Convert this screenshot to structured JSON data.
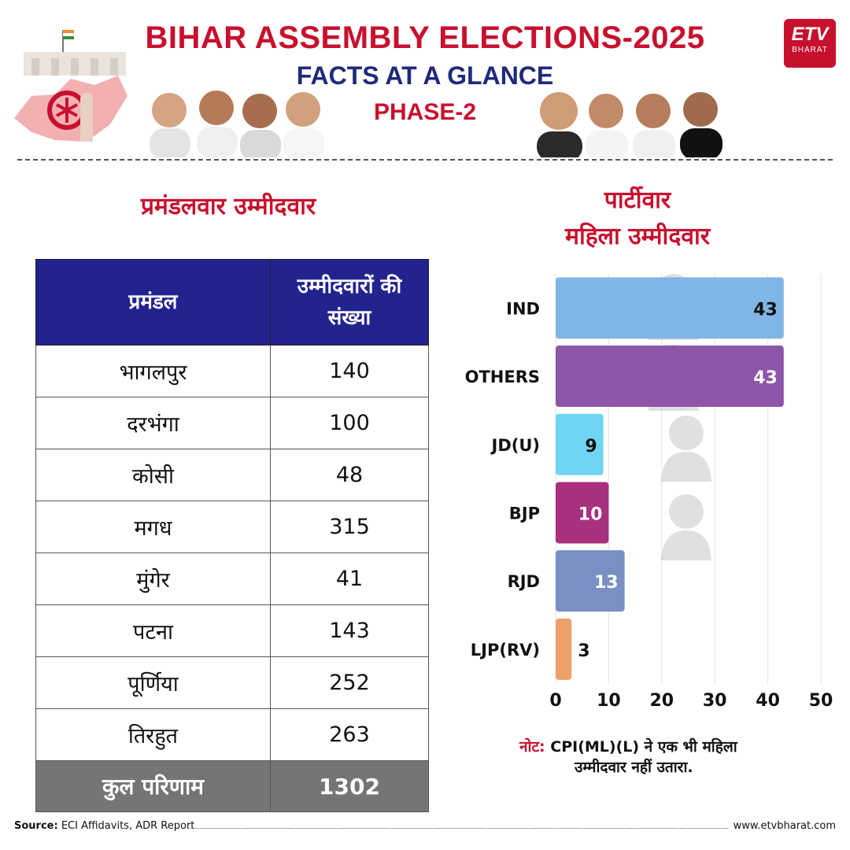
{
  "header": {
    "title": "BIHAR ASSEMBLY ELECTIONS-2025",
    "subtitle": "FACTS AT A GLANCE",
    "phase": "PHASE-2",
    "logo_text": "ETV",
    "logo_sub": "BHARAT"
  },
  "left_section": {
    "title": "प्रमंडलवार उम्मीदवार",
    "columns": [
      "प्रमंडल",
      "उम्मीदवारों की संख्या"
    ],
    "rows": [
      {
        "division": "भागलपुर",
        "count": "140"
      },
      {
        "division": "दरभंगा",
        "count": "100"
      },
      {
        "division": "कोसी",
        "count": "48"
      },
      {
        "division": "मगध",
        "count": "315"
      },
      {
        "division": "मुंगेर",
        "count": "41"
      },
      {
        "division": "पटना",
        "count": "143"
      },
      {
        "division": "पूर्णिया",
        "count": "252"
      },
      {
        "division": "तिरहुत",
        "count": "263"
      }
    ],
    "total_label": "कुल परिणाम",
    "total_value": "1302"
  },
  "right_section": {
    "title_line1": "पार्टीवार",
    "title_line2": "महिला उम्मीदवार"
  },
  "chart_data": {
    "type": "bar",
    "orientation": "horizontal",
    "categories": [
      "IND",
      "OTHERS",
      "JD(U)",
      "BJP",
      "RJD",
      "LJP(RV)"
    ],
    "values": [
      43,
      43,
      9,
      10,
      13,
      3
    ],
    "colors": [
      "#7fb6e6",
      "#8e56a8",
      "#6fd6f2",
      "#a8307e",
      "#7a90c4",
      "#eea06a"
    ],
    "xticks": [
      0,
      10,
      20,
      30,
      40,
      50
    ],
    "xlim": [
      0,
      50
    ],
    "grid": true
  },
  "note": {
    "label": "नोट:",
    "text1": "CPI(ML)(L) ने एक भी महिला",
    "text2": "उम्मीदवार नहीं उतारा."
  },
  "footer": {
    "source_label": "Source:",
    "source_text": "ECI Affidavits, ADR Report",
    "url": "www.etvbharat.com"
  }
}
